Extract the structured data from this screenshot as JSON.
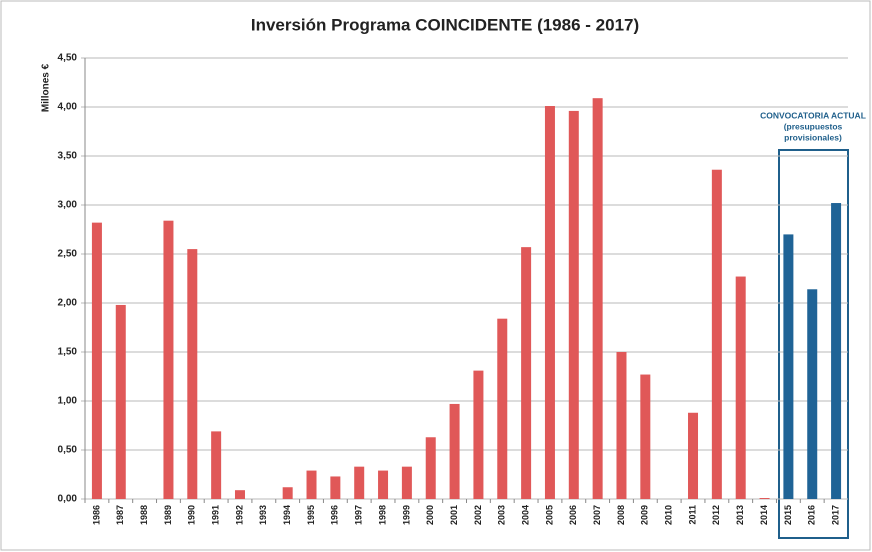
{
  "chart_data": {
    "type": "bar",
    "title": "Inversión Programa COINCIDENTE (1986 - 2017)",
    "y_label": "Millones €",
    "categories": [
      "1986",
      "1987",
      "1988",
      "1989",
      "1990",
      "1991",
      "1992",
      "1993",
      "1994",
      "1995",
      "1996",
      "1997",
      "1998",
      "1999",
      "2000",
      "2001",
      "2002",
      "2003",
      "2004",
      "2005",
      "2006",
      "2007",
      "2008",
      "2009",
      "2010",
      "2011",
      "2012",
      "2013",
      "2014",
      "2015",
      "2016",
      "2017"
    ],
    "values": [
      2.82,
      1.98,
      0,
      2.84,
      2.55,
      0.69,
      0.09,
      0,
      0.12,
      0.29,
      0.23,
      0.33,
      0.29,
      0.33,
      0.63,
      0.97,
      1.31,
      1.84,
      2.57,
      4.01,
      3.96,
      4.09,
      1.5,
      1.27,
      0,
      0.88,
      3.36,
      2.27,
      0.01,
      2.7,
      2.14,
      3.02
    ],
    "colors": [
      "#e05858",
      "#e05858",
      "#e05858",
      "#e05858",
      "#e05858",
      "#e05858",
      "#e05858",
      "#e05858",
      "#e05858",
      "#e05858",
      "#e05858",
      "#e05858",
      "#e05858",
      "#e05858",
      "#e05858",
      "#e05858",
      "#e05858",
      "#e05858",
      "#e05858",
      "#e05858",
      "#e05858",
      "#e05858",
      "#e05858",
      "#e05858",
      "#e05858",
      "#e05858",
      "#e05858",
      "#e05858",
      "#e05858",
      "#1f6396",
      "#1f6396",
      "#1f6396"
    ],
    "annotation": [
      "CONVOCATORIA ACTUAL",
      "(presupuestos",
      "provisionales)"
    ],
    "ylim": [
      0,
      4.5
    ],
    "yticks": [
      {
        "value": 0,
        "label": "0,00"
      },
      {
        "value": 0.5,
        "label": "0,50"
      },
      {
        "value": 1,
        "label": "1,00"
      },
      {
        "value": 1.5,
        "label": "1,50"
      },
      {
        "value": 2,
        "label": "2,00"
      },
      {
        "value": 2.5,
        "label": "2,50"
      },
      {
        "value": 3,
        "label": "3,00"
      },
      {
        "value": 3.5,
        "label": "3,50"
      },
      {
        "value": 4,
        "label": "4,00"
      },
      {
        "value": 4.5,
        "label": "4,50"
      }
    ],
    "grid": true
  }
}
